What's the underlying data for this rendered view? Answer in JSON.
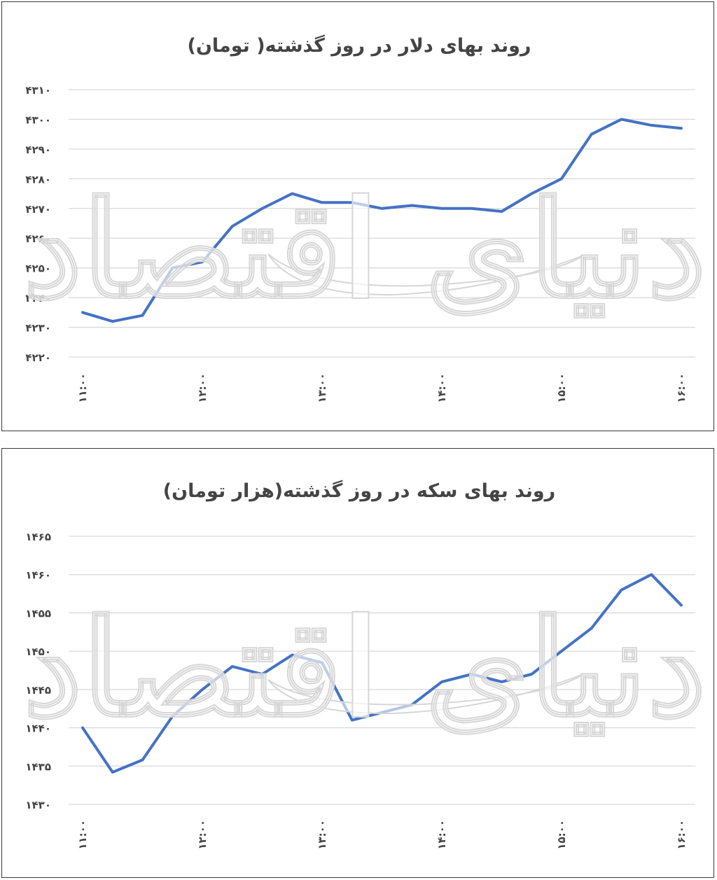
{
  "watermark": "دنیای اقتصاد",
  "colors": {
    "line": "#4472c4",
    "grid": "#d9d9d9",
    "text": "#444444",
    "border": "#3a3a3a"
  },
  "chart_data": [
    {
      "type": "line",
      "title": "روند بهای دلار در روز گذشته( تومان)",
      "xlabel": "",
      "ylabel": "",
      "ylim": [
        4220,
        4310
      ],
      "yticks": [
        "۴۲۲۰",
        "۴۲۳۰",
        "۴۲۴۰",
        "۴۲۵۰",
        "۴۲۶۰",
        "۴۲۷۰",
        "۴۲۸۰",
        "۴۲۹۰",
        "۴۳۰۰",
        "۴۳۱۰"
      ],
      "xtick_labels": [
        "۱۱:۰۰",
        "۱۲:۰۰",
        "۱۳:۰۰",
        "۱۴:۰۰",
        "۱۵:۰۰",
        "۱۶:۰۰"
      ],
      "x": [
        "11:00",
        "11:15",
        "11:30",
        "11:45",
        "12:00",
        "12:15",
        "12:30",
        "12:45",
        "13:00",
        "13:15",
        "13:30",
        "13:45",
        "14:00",
        "14:15",
        "14:30",
        "14:45",
        "15:00",
        "15:15",
        "15:30",
        "15:45",
        "16:00"
      ],
      "series": [
        {
          "values": [
            4235,
            4232,
            4234,
            4250,
            4252,
            4264,
            4270,
            4275,
            4272,
            4272,
            4270,
            4271,
            4270,
            4270,
            4269,
            4275,
            4280,
            4295,
            4300,
            4298,
            4297
          ]
        }
      ],
      "grid": true,
      "legend": "none"
    },
    {
      "type": "line",
      "title": "روند بهای سکه در روز گذشته(هزار تومان)",
      "xlabel": "",
      "ylabel": "",
      "ylim": [
        1430,
        1465
      ],
      "yticks": [
        "۱۴۳۰",
        "۱۴۳۵",
        "۱۴۴۰",
        "۱۴۴۵",
        "۱۴۵۰",
        "۱۴۵۵",
        "۱۴۶۰",
        "۱۴۶۵"
      ],
      "xtick_labels": [
        "۱۱:۰۰",
        "۱۲:۰۰",
        "۱۳:۰۰",
        "۱۴:۰۰",
        "۱۵:۰۰",
        "۱۶:۰۰"
      ],
      "x": [
        "11:00",
        "11:15",
        "11:30",
        "11:45",
        "12:00",
        "12:15",
        "12:30",
        "12:45",
        "13:00",
        "13:15",
        "13:30",
        "13:45",
        "14:00",
        "14:15",
        "14:30",
        "14:45",
        "15:00",
        "15:15",
        "15:30",
        "15:45",
        "16:00"
      ],
      "series": [
        {
          "values": [
            1440,
            1434.2,
            1435.8,
            1441.5,
            1445,
            1448,
            1447,
            1449.5,
            1448.5,
            1441,
            1442,
            1443,
            1446,
            1447,
            1446,
            1447,
            1450,
            1453,
            1458,
            1460,
            1456
          ]
        }
      ],
      "grid": true,
      "legend": "none"
    }
  ]
}
